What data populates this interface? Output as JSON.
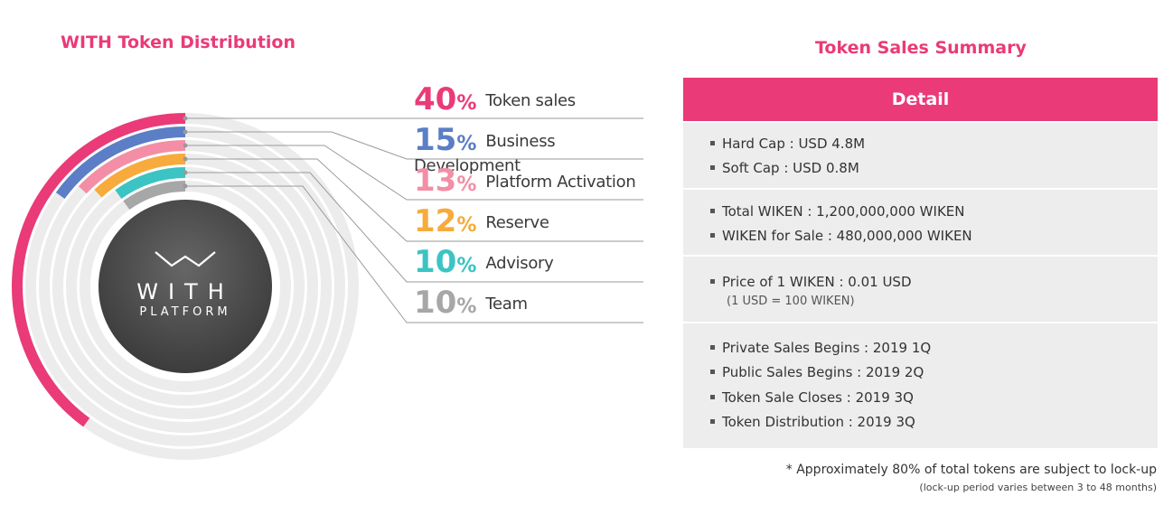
{
  "left_title": "WITH Token Distribution",
  "right_title": "Token Sales Summary",
  "logo": {
    "line1": "WITH",
    "line2": "PLATFORM"
  },
  "chart_data": {
    "type": "pie",
    "title": "WITH Token Distribution",
    "categories": [
      "Token sales",
      "Business Development",
      "Platform Activation",
      "Reserve",
      "Advisory",
      "Team"
    ],
    "values": [
      40,
      15,
      13,
      12,
      10,
      10
    ],
    "unit": "%",
    "colors": [
      "#ea3a78",
      "#5b7ec6",
      "#f38ea6",
      "#f6ab3c",
      "#3cc4c4",
      "#a7a7a7"
    ]
  },
  "legend": [
    {
      "pct": "40",
      "sign": "%",
      "label": "Token sales",
      "color": "#ea3a78"
    },
    {
      "pct": "15",
      "sign": "%",
      "label": "Business Development",
      "color": "#5b7ec6"
    },
    {
      "pct": "13",
      "sign": "%",
      "label": "Platform Activation",
      "color": "#f38ea6"
    },
    {
      "pct": "12",
      "sign": "%",
      "label": "Reserve",
      "color": "#f6ab3c"
    },
    {
      "pct": "10",
      "sign": "%",
      "label": "Advisory",
      "color": "#3cc4c4"
    },
    {
      "pct": "10",
      "sign": "%",
      "label": "Team",
      "color": "#a7a7a7"
    }
  ],
  "summary": {
    "header": "Detail",
    "sections": [
      {
        "items": [
          "Hard Cap : USD 4.8M",
          "Soft Cap : USD 0.8M"
        ]
      },
      {
        "items": [
          "Total WIKEN : 1,200,000,000 WIKEN",
          "WIKEN for Sale : 480,000,000 WIKEN"
        ]
      },
      {
        "items": [
          "Price of 1 WIKEN : 0.01 USD"
        ],
        "note": "(1 USD = 100 WIKEN)"
      },
      {
        "items": [
          "Private Sales Begins : 2019 1Q",
          "Public Sales Begins : 2019 2Q",
          "Token Sale Closes : 2019 3Q",
          "Token Distribution : 2019 3Q"
        ]
      }
    ],
    "footnote": "* Approximately 80% of total tokens are subject to lock-up",
    "footnote_sub": "(lock-up period varies between 3 to 48 months)"
  }
}
